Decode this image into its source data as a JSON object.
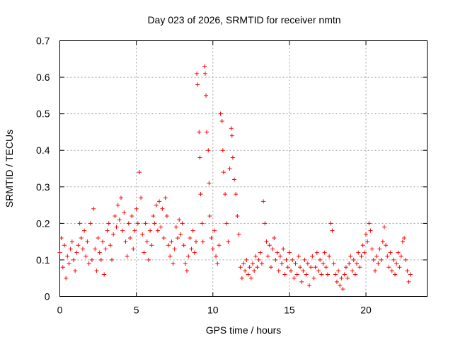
{
  "chart_data": {
    "type": "scatter",
    "title": "Day 023 of 2026, SRMTID for receiver nmtn",
    "xlabel": "GPS time / hours",
    "ylabel": "SRMTID / TECUs",
    "xlim": [
      0,
      24
    ],
    "ylim": [
      0,
      0.7
    ],
    "xticks": [
      0,
      5,
      10,
      15,
      20
    ],
    "yticks": [
      0,
      0.1,
      0.2,
      0.3,
      0.4,
      0.5,
      0.6,
      0.7
    ],
    "xtick_labels": [
      "0",
      "5",
      "10",
      "15",
      "20"
    ],
    "ytick_labels": [
      "0",
      "0.1",
      "0.2",
      "0.3",
      "0.4",
      "0.5",
      "0.6",
      "0.7"
    ],
    "grid": true,
    "marker": "+",
    "series": [
      {
        "name": "SRMTID",
        "color": "#ff0000",
        "points": [
          [
            0.0,
            0.12
          ],
          [
            0.1,
            0.16
          ],
          [
            0.2,
            0.08
          ],
          [
            0.3,
            0.14
          ],
          [
            0.4,
            0.05
          ],
          [
            0.5,
            0.11
          ],
          [
            0.6,
            0.09
          ],
          [
            0.7,
            0.13
          ],
          [
            0.8,
            0.15
          ],
          [
            0.9,
            0.1
          ],
          [
            1.0,
            0.07
          ],
          [
            1.1,
            0.12
          ],
          [
            1.2,
            0.14
          ],
          [
            1.3,
            0.2
          ],
          [
            1.4,
            0.16
          ],
          [
            1.5,
            0.13
          ],
          [
            1.6,
            0.18
          ],
          [
            1.7,
            0.11
          ],
          [
            1.8,
            0.15
          ],
          [
            1.9,
            0.09
          ],
          [
            2.0,
            0.2
          ],
          [
            2.1,
            0.1
          ],
          [
            2.2,
            0.24
          ],
          [
            2.3,
            0.13
          ],
          [
            2.4,
            0.07
          ],
          [
            2.5,
            0.16
          ],
          [
            2.6,
            0.12
          ],
          [
            2.7,
            0.1
          ],
          [
            2.8,
            0.15
          ],
          [
            2.9,
            0.06
          ],
          [
            3.0,
            0.13
          ],
          [
            3.1,
            0.18
          ],
          [
            3.2,
            0.2
          ],
          [
            3.3,
            0.14
          ],
          [
            3.4,
            0.1
          ],
          [
            3.5,
            0.17
          ],
          [
            3.6,
            0.22
          ],
          [
            3.7,
            0.19
          ],
          [
            3.8,
            0.25
          ],
          [
            3.9,
            0.21
          ],
          [
            4.0,
            0.27
          ],
          [
            4.1,
            0.18
          ],
          [
            4.2,
            0.23
          ],
          [
            4.3,
            0.15
          ],
          [
            4.4,
            0.11
          ],
          [
            4.5,
            0.2
          ],
          [
            4.6,
            0.16
          ],
          [
            4.7,
            0.22
          ],
          [
            4.8,
            0.13
          ],
          [
            4.9,
            0.18
          ],
          [
            5.0,
            0.24
          ],
          [
            5.1,
            0.2
          ],
          [
            5.2,
            0.34
          ],
          [
            5.3,
            0.27
          ],
          [
            5.4,
            0.17
          ],
          [
            5.5,
            0.12
          ],
          [
            5.6,
            0.2
          ],
          [
            5.7,
            0.15
          ],
          [
            5.8,
            0.1
          ],
          [
            5.9,
            0.18
          ],
          [
            6.0,
            0.14
          ],
          [
            6.1,
            0.22
          ],
          [
            6.2,
            0.2
          ],
          [
            6.3,
            0.25
          ],
          [
            6.4,
            0.18
          ],
          [
            6.5,
            0.26
          ],
          [
            6.6,
            0.19
          ],
          [
            6.7,
            0.24
          ],
          [
            6.8,
            0.16
          ],
          [
            6.9,
            0.27
          ],
          [
            7.0,
            0.22
          ],
          [
            7.1,
            0.14
          ],
          [
            7.2,
            0.11
          ],
          [
            7.3,
            0.15
          ],
          [
            7.4,
            0.09
          ],
          [
            7.5,
            0.13
          ],
          [
            7.6,
            0.19
          ],
          [
            7.7,
            0.16
          ],
          [
            7.8,
            0.21
          ],
          [
            7.9,
            0.17
          ],
          [
            8.0,
            0.2
          ],
          [
            8.1,
            0.14
          ],
          [
            8.2,
            0.09
          ],
          [
            8.3,
            0.07
          ],
          [
            8.4,
            0.11
          ],
          [
            8.5,
            0.16
          ],
          [
            8.6,
            0.13
          ],
          [
            8.7,
            0.18
          ],
          [
            8.8,
            0.12
          ],
          [
            8.9,
            0.15
          ],
          [
            8.95,
            0.61
          ],
          [
            9.0,
            0.58
          ],
          [
            9.1,
            0.45
          ],
          [
            9.15,
            0.38
          ],
          [
            9.2,
            0.28
          ],
          [
            9.3,
            0.2
          ],
          [
            9.35,
            0.15
          ],
          [
            9.45,
            0.63
          ],
          [
            9.5,
            0.61
          ],
          [
            9.55,
            0.55
          ],
          [
            9.6,
            0.45
          ],
          [
            9.7,
            0.4
          ],
          [
            9.75,
            0.31
          ],
          [
            9.8,
            0.22
          ],
          [
            9.9,
            0.16
          ],
          [
            10.0,
            0.13
          ],
          [
            10.1,
            0.18
          ],
          [
            10.2,
            0.11
          ],
          [
            10.3,
            0.09
          ],
          [
            10.4,
            0.14
          ],
          [
            10.5,
            0.5
          ],
          [
            10.6,
            0.48
          ],
          [
            10.65,
            0.4
          ],
          [
            10.7,
            0.34
          ],
          [
            10.8,
            0.28
          ],
          [
            10.9,
            0.2
          ],
          [
            11.0,
            0.15
          ],
          [
            11.1,
            0.35
          ],
          [
            11.2,
            0.46
          ],
          [
            11.25,
            0.44
          ],
          [
            11.3,
            0.38
          ],
          [
            11.4,
            0.32
          ],
          [
            11.5,
            0.28
          ],
          [
            11.6,
            0.22
          ],
          [
            11.7,
            0.17
          ],
          [
            11.8,
            0.08
          ],
          [
            11.9,
            0.05
          ],
          [
            12.0,
            0.09
          ],
          [
            12.1,
            0.07
          ],
          [
            12.2,
            0.1
          ],
          [
            12.3,
            0.06
          ],
          [
            12.4,
            0.08
          ],
          [
            12.5,
            0.05
          ],
          [
            12.6,
            0.09
          ],
          [
            12.7,
            0.07
          ],
          [
            12.8,
            0.11
          ],
          [
            12.9,
            0.08
          ],
          [
            13.0,
            0.1
          ],
          [
            13.1,
            0.12
          ],
          [
            13.2,
            0.09
          ],
          [
            13.3,
            0.26
          ],
          [
            13.4,
            0.2
          ],
          [
            13.5,
            0.15
          ],
          [
            13.6,
            0.11
          ],
          [
            13.7,
            0.14
          ],
          [
            13.8,
            0.08
          ],
          [
            13.9,
            0.13
          ],
          [
            14.0,
            0.16
          ],
          [
            14.1,
            0.1
          ],
          [
            14.2,
            0.12
          ],
          [
            14.3,
            0.07
          ],
          [
            14.4,
            0.11
          ],
          [
            14.5,
            0.09
          ],
          [
            14.6,
            0.13
          ],
          [
            14.7,
            0.06
          ],
          [
            14.8,
            0.1
          ],
          [
            14.9,
            0.08
          ],
          [
            15.0,
            0.12
          ],
          [
            15.1,
            0.07
          ],
          [
            15.2,
            0.1
          ],
          [
            15.3,
            0.05
          ],
          [
            15.4,
            0.09
          ],
          [
            15.5,
            0.06
          ],
          [
            15.6,
            0.11
          ],
          [
            15.7,
            0.08
          ],
          [
            15.8,
            0.04
          ],
          [
            15.9,
            0.07
          ],
          [
            16.0,
            0.1
          ],
          [
            16.1,
            0.06
          ],
          [
            16.2,
            0.09
          ],
          [
            16.3,
            0.03
          ],
          [
            16.4,
            0.08
          ],
          [
            16.5,
            0.11
          ],
          [
            16.6,
            0.05
          ],
          [
            16.7,
            0.08
          ],
          [
            16.8,
            0.12
          ],
          [
            16.9,
            0.07
          ],
          [
            17.0,
            0.1
          ],
          [
            17.1,
            0.06
          ],
          [
            17.2,
            0.09
          ],
          [
            17.3,
            0.12
          ],
          [
            17.4,
            0.08
          ],
          [
            17.5,
            0.06
          ],
          [
            17.6,
            0.11
          ],
          [
            17.7,
            0.2
          ],
          [
            17.8,
            0.18
          ],
          [
            17.9,
            0.09
          ],
          [
            18.0,
            0.06
          ],
          [
            18.1,
            0.04
          ],
          [
            18.2,
            0.07
          ],
          [
            18.3,
            0.03
          ],
          [
            18.4,
            0.05
          ],
          [
            18.5,
            0.02
          ],
          [
            18.6,
            0.06
          ],
          [
            18.7,
            0.08
          ],
          [
            18.8,
            0.05
          ],
          [
            18.9,
            0.09
          ],
          [
            19.0,
            0.11
          ],
          [
            19.1,
            0.07
          ],
          [
            19.2,
            0.1
          ],
          [
            19.3,
            0.06
          ],
          [
            19.4,
            0.09
          ],
          [
            19.5,
            0.12
          ],
          [
            19.6,
            0.08
          ],
          [
            19.7,
            0.11
          ],
          [
            19.8,
            0.14
          ],
          [
            19.9,
            0.12
          ],
          [
            20.0,
            0.17
          ],
          [
            20.1,
            0.15
          ],
          [
            20.2,
            0.2
          ],
          [
            20.3,
            0.18
          ],
          [
            20.4,
            0.13
          ],
          [
            20.5,
            0.1
          ],
          [
            20.6,
            0.07
          ],
          [
            20.7,
            0.11
          ],
          [
            20.8,
            0.09
          ],
          [
            20.9,
            0.13
          ],
          [
            21.0,
            0.1
          ],
          [
            21.1,
            0.15
          ],
          [
            21.2,
            0.19
          ],
          [
            21.3,
            0.14
          ],
          [
            21.4,
            0.11
          ],
          [
            21.5,
            0.08
          ],
          [
            21.6,
            0.12
          ],
          [
            21.7,
            0.07
          ],
          [
            21.8,
            0.1
          ],
          [
            21.9,
            0.06
          ],
          [
            22.0,
            0.09
          ],
          [
            22.1,
            0.12
          ],
          [
            22.2,
            0.08
          ],
          [
            22.3,
            0.11
          ],
          [
            22.4,
            0.15
          ],
          [
            22.5,
            0.16
          ],
          [
            22.6,
            0.1
          ],
          [
            22.7,
            0.07
          ],
          [
            22.8,
            0.04
          ],
          [
            22.9,
            0.06
          ]
        ]
      }
    ]
  }
}
